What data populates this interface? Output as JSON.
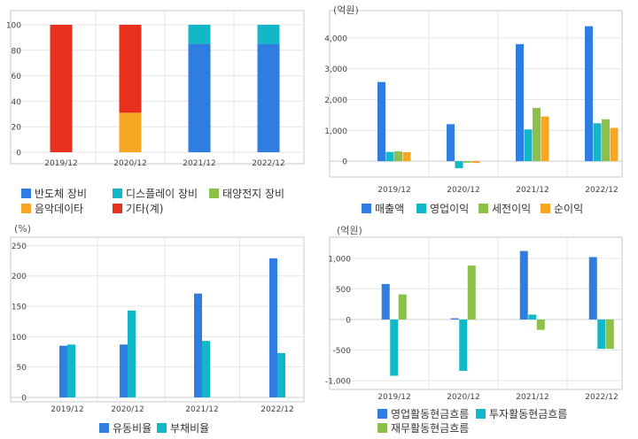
{
  "colors": {
    "blue": "#2f7de1",
    "cyan": "#12b8c8",
    "green": "#8cc04b",
    "orange": "#f6a623",
    "red": "#e8301e",
    "grid": "#e6e6e6",
    "axis": "#bbbbbb",
    "frame": "#c8c8c8"
  },
  "chart_data": [
    {
      "id": "revenue-composition",
      "type": "bar",
      "stacked": true,
      "categories": [
        "2019/12",
        "2020/12",
        "2021/12",
        "2022/12"
      ],
      "ylim": [
        0,
        100
      ],
      "yticks": [
        0,
        20,
        40,
        60,
        80,
        100
      ],
      "ytick_labels": [
        "0",
        "20",
        "40",
        "60",
        "80",
        "100"
      ],
      "unit": "",
      "series": [
        {
          "name": "반도체 장비",
          "color": "blue",
          "values": [
            0,
            0,
            85,
            85
          ]
        },
        {
          "name": "디스플레이 장비",
          "color": "cyan",
          "values": [
            0,
            0,
            15,
            15
          ]
        },
        {
          "name": "태양전지 장비",
          "color": "green",
          "values": [
            0,
            0,
            0,
            0
          ]
        },
        {
          "name": "음악데이타",
          "color": "orange",
          "values": [
            0,
            31,
            0,
            0
          ]
        },
        {
          "name": "기타(계)",
          "color": "red",
          "values": [
            100,
            69,
            0,
            0
          ]
        }
      ]
    },
    {
      "id": "income",
      "type": "bar",
      "categories": [
        "2019/12",
        "2020/12",
        "2021/12",
        "2022/12"
      ],
      "ylim": [
        -400,
        4600
      ],
      "yticks": [
        0,
        1000,
        2000,
        3000,
        4000
      ],
      "ytick_labels": [
        "0",
        "1,000",
        "2,000",
        "3,000",
        "4,000"
      ],
      "unit": "(억원)",
      "series": [
        {
          "name": "매출액",
          "color": "blue",
          "values": [
            2570,
            1200,
            3800,
            4380
          ]
        },
        {
          "name": "영업이익",
          "color": "cyan",
          "values": [
            300,
            -230,
            1030,
            1230
          ]
        },
        {
          "name": "세전이익",
          "color": "green",
          "values": [
            320,
            -50,
            1730,
            1360
          ]
        },
        {
          "name": "순이익",
          "color": "orange",
          "values": [
            290,
            -60,
            1450,
            1080
          ]
        }
      ]
    },
    {
      "id": "stability-ratio",
      "type": "bar",
      "categories": [
        "2019/12",
        "2020/12",
        "2021/12",
        "2022/12"
      ],
      "ylim": [
        0,
        255
      ],
      "yticks": [
        0,
        50,
        100,
        150,
        200,
        250
      ],
      "ytick_labels": [
        "0",
        "50",
        "100",
        "150",
        "200",
        "250"
      ],
      "unit": "(%)",
      "series": [
        {
          "name": "유동비율",
          "color": "blue",
          "values": [
            85,
            87,
            171,
            229
          ]
        },
        {
          "name": "부채비율",
          "color": "cyan",
          "values": [
            87,
            143,
            93,
            73
          ]
        }
      ]
    },
    {
      "id": "cash-flow",
      "type": "bar",
      "categories": [
        "2019/12",
        "2020/12",
        "2021/12",
        "2022/12"
      ],
      "ylim": [
        -1100,
        1200
      ],
      "yticks": [
        -1000,
        -500,
        0,
        500,
        1000
      ],
      "ytick_labels": [
        "-1,000",
        "-500",
        "0",
        "500",
        "1,000"
      ],
      "unit": "(억원)",
      "series": [
        {
          "name": "영업활동현금흐름",
          "color": "blue",
          "values": [
            580,
            20,
            1120,
            1020
          ]
        },
        {
          "name": "투자활동현금흐름",
          "color": "cyan",
          "values": [
            -920,
            -840,
            80,
            -480
          ]
        },
        {
          "name": "재무활동현금흐름",
          "color": "green",
          "values": [
            410,
            880,
            -170,
            -480
          ]
        }
      ]
    }
  ]
}
